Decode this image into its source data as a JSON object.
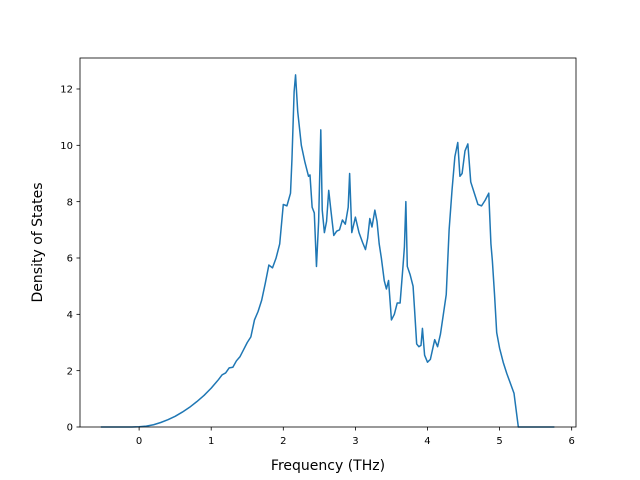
{
  "chart_data": {
    "type": "line",
    "title": "",
    "xlabel": "Frequency (THz)",
    "ylabel": "Density of States",
    "xlim": [
      -0.82,
      6.06
    ],
    "ylim": [
      0,
      13.1
    ],
    "xticks": [
      0,
      1,
      2,
      3,
      4,
      5,
      6
    ],
    "yticks": [
      0,
      2,
      4,
      6,
      8,
      10,
      12
    ],
    "grid": false,
    "legend": "none",
    "series": [
      {
        "color": "#1f77b4",
        "x": [
          -0.52,
          -0.3,
          -0.1,
          0.0,
          0.1,
          0.2,
          0.3,
          0.4,
          0.5,
          0.6,
          0.7,
          0.8,
          0.9,
          1.0,
          1.1,
          1.15,
          1.2,
          1.25,
          1.3,
          1.35,
          1.4,
          1.45,
          1.5,
          1.55,
          1.6,
          1.65,
          1.7,
          1.75,
          1.8,
          1.85,
          1.9,
          1.95,
          2.0,
          2.05,
          2.1,
          2.12,
          2.15,
          2.17,
          2.2,
          2.25,
          2.3,
          2.35,
          2.37,
          2.4,
          2.43,
          2.46,
          2.49,
          2.52,
          2.54,
          2.57,
          2.6,
          2.63,
          2.66,
          2.7,
          2.74,
          2.78,
          2.82,
          2.86,
          2.9,
          2.92,
          2.95,
          3.0,
          3.05,
          3.1,
          3.14,
          3.17,
          3.2,
          3.23,
          3.27,
          3.3,
          3.33,
          3.36,
          3.4,
          3.43,
          3.46,
          3.5,
          3.54,
          3.58,
          3.62,
          3.66,
          3.68,
          3.7,
          3.72,
          3.76,
          3.8,
          3.82,
          3.85,
          3.88,
          3.91,
          3.93,
          3.96,
          4.0,
          4.04,
          4.07,
          4.1,
          4.14,
          4.18,
          4.22,
          4.26,
          4.3,
          4.34,
          4.38,
          4.42,
          4.45,
          4.48,
          4.52,
          4.56,
          4.6,
          4.65,
          4.7,
          4.75,
          4.8,
          4.85,
          4.88,
          4.9,
          4.93,
          4.96,
          5.0,
          5.05,
          5.1,
          5.15,
          5.2,
          5.22,
          5.24,
          5.26,
          5.3,
          5.5,
          5.75
        ],
        "y": [
          0.0,
          0.0,
          0.0,
          0.01,
          0.03,
          0.08,
          0.16,
          0.26,
          0.38,
          0.53,
          0.7,
          0.9,
          1.12,
          1.38,
          1.68,
          1.85,
          1.92,
          2.1,
          2.12,
          2.35,
          2.5,
          2.75,
          3.0,
          3.2,
          3.8,
          4.1,
          4.5,
          5.1,
          5.75,
          5.65,
          6.0,
          6.5,
          7.9,
          7.85,
          8.3,
          9.5,
          11.9,
          12.5,
          11.2,
          10.0,
          9.4,
          8.9,
          8.95,
          7.8,
          7.6,
          5.7,
          7.3,
          10.55,
          7.7,
          6.9,
          7.3,
          8.4,
          7.7,
          6.8,
          6.95,
          7.0,
          7.35,
          7.2,
          7.8,
          9.0,
          6.9,
          7.45,
          6.9,
          6.55,
          6.3,
          6.7,
          7.4,
          7.1,
          7.7,
          7.3,
          6.5,
          6.0,
          5.2,
          4.9,
          5.2,
          3.8,
          4.0,
          4.4,
          4.4,
          5.7,
          6.4,
          8.0,
          5.7,
          5.4,
          5.0,
          4.2,
          2.95,
          2.85,
          2.9,
          3.5,
          2.55,
          2.3,
          2.4,
          2.75,
          3.1,
          2.85,
          3.3,
          4.0,
          4.7,
          7.0,
          8.4,
          9.6,
          10.1,
          8.9,
          9.0,
          9.8,
          10.05,
          8.7,
          8.3,
          7.9,
          7.85,
          8.05,
          8.3,
          6.5,
          5.9,
          4.7,
          3.35,
          2.8,
          2.3,
          1.9,
          1.55,
          1.2,
          0.8,
          0.4,
          0.0,
          0.0,
          0.0,
          0.0
        ]
      }
    ]
  }
}
